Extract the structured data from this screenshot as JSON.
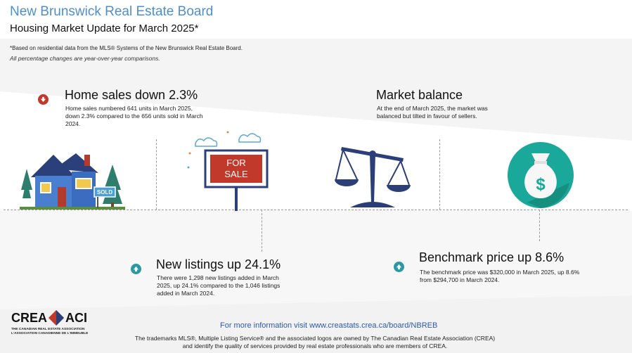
{
  "header": {
    "org_title": "New Brunswick Real Estate Board",
    "subtitle": "Housing Market Update for March 2025*",
    "note_based_on": "*Based on residential data from the MLS® Systems of the New Brunswick Real Estate Board.",
    "note_changes": "All percentage changes are year-over-year comparisons."
  },
  "stats": {
    "home_sales": {
      "heading": "Home sales down 2.3%",
      "text": "Home sales numbered 641 units in March 2025, down 2.3% compared to the 656 units sold in March 2024.",
      "direction": "down"
    },
    "market_balance": {
      "heading": "Market balance",
      "text": "At the end of March 2025, the market was balanced but tilted in favour of sellers."
    },
    "new_listings": {
      "heading": "New listings up 24.1%",
      "text": "There were 1,298 new listings added in March 2025, up 24.1% compared to the 1,046 listings added in March 2024.",
      "direction": "up"
    },
    "benchmark": {
      "heading": "Benchmark price up 8.6%",
      "text": "The benchmark price was $320,000 in March 2025, up 8.6% from $294,700 in March 2024.",
      "direction": "up"
    }
  },
  "illustrations": {
    "house_sign": "SOLD",
    "for_sale_sign": "FOR SALE",
    "money_bag_symbol": "$"
  },
  "footer": {
    "logo_crea": "CREA",
    "logo_aci": "ACI",
    "association_en": "THE CANADIAN REAL ESTATE ASSOCIATION",
    "association_fr": "L'ASSOCIATION CANADIENNE DE L'IMMEUBLE",
    "more_info": "For more information visit www.creastats.crea.ca/board/NBREB",
    "trademark": "The trademarks MLS®, Multiple Listing Service® and the associated logos are owned by The Canadian Real Estate Association (CREA) and identify the quality of services provided by real estate professionals who are members of CREA."
  },
  "colors": {
    "title_blue": "#4f8fc8",
    "down_red": "#c0392b",
    "up_teal": "#2a9aa0",
    "scale_navy": "#2c3e77",
    "bag_teal": "#1aa89a",
    "link_blue": "#2a5aa6"
  },
  "icons": [
    "arrow-down-icon",
    "arrow-up-icon",
    "house-icon",
    "for-sale-sign-icon",
    "scale-icon",
    "money-bag-icon"
  ]
}
